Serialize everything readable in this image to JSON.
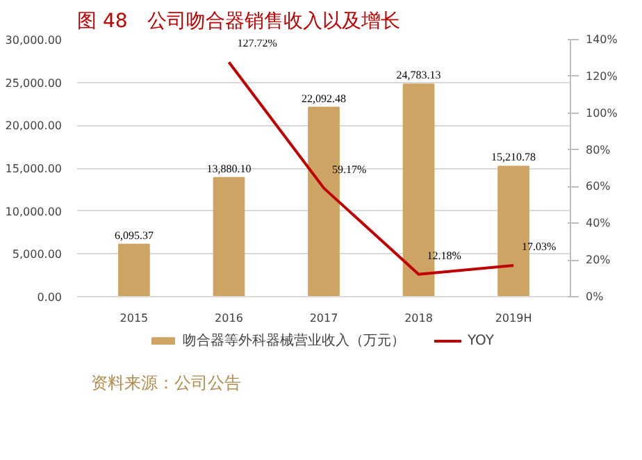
{
  "chart_data": {
    "type": "bar",
    "title": "图 48　公司吻合器销售收入以及增长",
    "categories": [
      "2015",
      "2016",
      "2017",
      "2018",
      "2019H"
    ],
    "series": [
      {
        "name": "吻合器等外科器械营业收入（万元）",
        "color": "#cda464",
        "values": [
          6095.37,
          13880.1,
          22092.48,
          24783.13,
          15210.78
        ],
        "value_labels": [
          "6,095.37",
          "13,880.10",
          "22,092.48",
          "24,783.13",
          "15,210.78"
        ]
      },
      {
        "name": "YOY",
        "type": "line",
        "axis": "y2",
        "color": "#c00000",
        "values": [
          null,
          127.72,
          59.17,
          12.18,
          17.03
        ],
        "value_labels": [
          null,
          "127.72%",
          "59.17%",
          "12.18%",
          "17.03%"
        ]
      }
    ],
    "ylim": [
      0,
      30000
    ],
    "yticks": [
      {
        "value": 0,
        "label": "0.00"
      },
      {
        "value": 5000,
        "label": "5,000.00"
      },
      {
        "value": 10000,
        "label": "10,000.00"
      },
      {
        "value": 15000,
        "label": "15,000.00"
      },
      {
        "value": 20000,
        "label": "20,000.00"
      },
      {
        "value": 25000,
        "label": "25,000.00"
      },
      {
        "value": 30000,
        "label": "30,000.00"
      }
    ],
    "y2lim": [
      0,
      140
    ],
    "y2ticks": [
      {
        "value": 0,
        "label": "0%"
      },
      {
        "value": 20,
        "label": "20%"
      },
      {
        "value": 40,
        "label": "40%"
      },
      {
        "value": 60,
        "label": "60%"
      },
      {
        "value": 80,
        "label": "80%"
      },
      {
        "value": 100,
        "label": "100%"
      },
      {
        "value": 120,
        "label": "120%"
      },
      {
        "value": 140,
        "label": "140%"
      }
    ],
    "grid": "y",
    "legend": "bottom",
    "annotations": [
      "资料来源：公司公告"
    ]
  }
}
